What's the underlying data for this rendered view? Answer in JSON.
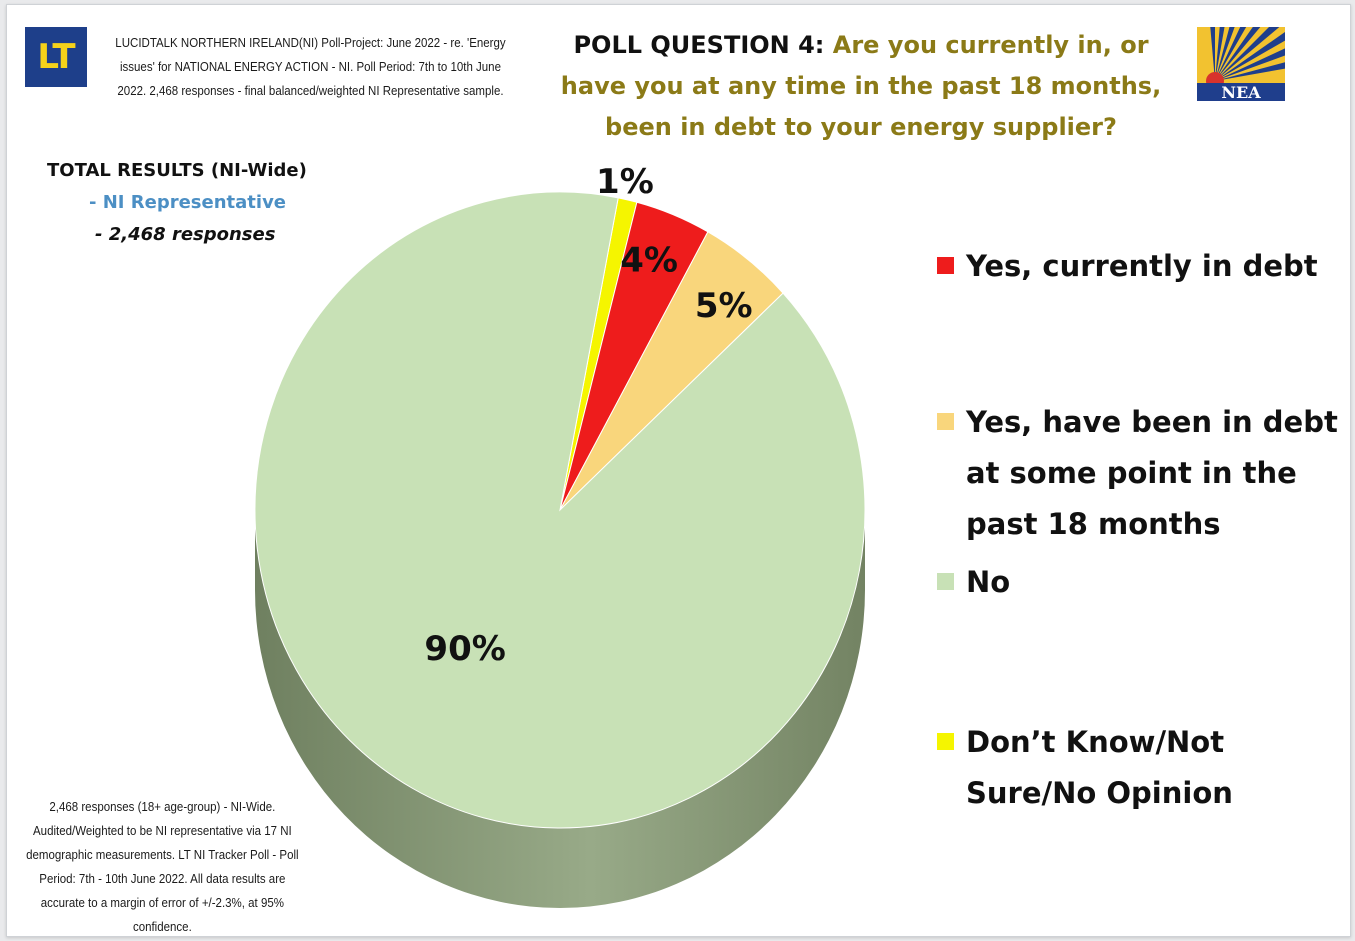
{
  "header": {
    "logo_text": "LT",
    "note": "LUCIDTALK NORTHERN IRELAND(NI) Poll-Project: June 2022 - re. 'Energy issues' for NATIONAL ENERGY ACTION - NI. Poll Period: 7th to 10th June 2022. 2,468 responses - final balanced/weighted NI Representative sample.",
    "question_prefix": "POLL QUESTION 4:",
    "question_text": "Are you currently in, or have you at any time in the past 18 months, been in debt to your energy supplier?",
    "nea_logo_text": "NEA"
  },
  "summary": {
    "line1": "TOTAL RESULTS (NI-Wide)",
    "line2": "- NI Representative",
    "line3": "- 2,468 responses"
  },
  "footnote": "2,468 responses (18+ age-group) - NI-Wide. Audited/Weighted to be NI representative via 17 NI demographic measurements. LT NI Tracker Poll - Poll Period: 7th - 10th June 2022. All data results are accurate to a margin of error of +/-2.3%, at 95% confidence.",
  "colors": {
    "yes_current": "#ee1c1c",
    "yes_past": "#f9d67c",
    "no": "#c8e1b6",
    "dont_know": "#f5f500",
    "title_accent": "#8b7a17",
    "ni_rep": "#4c8fc4"
  },
  "chart_data": {
    "type": "pie",
    "style": "3d",
    "slices": [
      {
        "label": "Don’t Know/Not Sure/No Opinion",
        "value": 1,
        "display": "1%",
        "color": "#f5f500"
      },
      {
        "label": "Yes, currently in debt",
        "value": 4,
        "display": "4%",
        "color": "#ee1c1c"
      },
      {
        "label": "Yes, have been in debt at some point in the past 18 months",
        "value": 5,
        "display": "5%",
        "color": "#f9d67c"
      },
      {
        "label": "No",
        "value": 90,
        "display": "90%",
        "color": "#c8e1b6"
      }
    ],
    "legend_position": "right",
    "legend": [
      {
        "label": "Yes, currently in debt",
        "color": "#ee1c1c"
      },
      {
        "label": "Yes, have been in debt at some point in the past 18 months",
        "color": "#f9d67c"
      },
      {
        "label": "No",
        "color": "#c8e1b6"
      },
      {
        "label": "Don’t Know/Not Sure/No Opinion",
        "color": "#f5f500"
      }
    ]
  }
}
